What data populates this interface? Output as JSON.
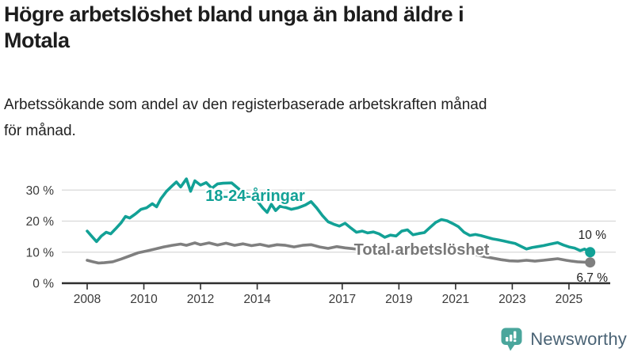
{
  "header": {
    "title": "Högre arbetslöshet bland unga än bland äldre i\nMotala",
    "subtitle": "Arbetssökande som andel av den registerbaserade arbetskraften månad\nför månad."
  },
  "chart_data": {
    "type": "line",
    "title": "Högre arbetslöshet bland unga än bland äldre i Motala",
    "subtitle": "Arbetssökande som andel av den registerbaserade arbetskraften månad för månad.",
    "grid": true,
    "legend_position": "inline-labels",
    "x_axis": {
      "range": [
        2007.6,
        2026.3
      ],
      "ticks": [
        {
          "year": 2008,
          "label": "2008"
        },
        {
          "year": 2010,
          "label": "2010"
        },
        {
          "year": 2012,
          "label": "2012"
        },
        {
          "year": 2014,
          "label": "2014"
        },
        {
          "year": 2017,
          "label": "2017"
        },
        {
          "year": 2019,
          "label": "2019"
        },
        {
          "year": 2021,
          "label": "2021"
        },
        {
          "year": 2023,
          "label": "2023"
        },
        {
          "year": 2025,
          "label": "2025"
        }
      ]
    },
    "y_axis": {
      "range": [
        0,
        34
      ],
      "unit": "%",
      "ticks": [
        {
          "value": 0,
          "label": "0 %"
        },
        {
          "value": 10,
          "label": "10 %"
        },
        {
          "value": 20,
          "label": "20 %"
        },
        {
          "value": 30,
          "label": "30 %"
        }
      ]
    },
    "series": [
      {
        "name": "18-24-åringar",
        "color": "#12a196",
        "label_color": "#12a196",
        "end_label": "10 %",
        "end_value": 10,
        "points": [
          [
            2008.0,
            16.8
          ],
          [
            2008.17,
            15.0
          ],
          [
            2008.33,
            13.4
          ],
          [
            2008.5,
            15.2
          ],
          [
            2008.67,
            16.4
          ],
          [
            2008.83,
            15.9
          ],
          [
            2009.0,
            17.5
          ],
          [
            2009.2,
            19.5
          ],
          [
            2009.35,
            21.5
          ],
          [
            2009.5,
            21.0
          ],
          [
            2009.7,
            22.3
          ],
          [
            2009.9,
            23.8
          ],
          [
            2010.1,
            24.3
          ],
          [
            2010.3,
            25.6
          ],
          [
            2010.45,
            24.6
          ],
          [
            2010.6,
            27.2
          ],
          [
            2010.8,
            29.6
          ],
          [
            2011.0,
            31.4
          ],
          [
            2011.15,
            32.6
          ],
          [
            2011.3,
            31.0
          ],
          [
            2011.5,
            33.6
          ],
          [
            2011.65,
            29.6
          ],
          [
            2011.8,
            33.0
          ],
          [
            2012.0,
            31.6
          ],
          [
            2012.2,
            32.4
          ],
          [
            2012.4,
            30.6
          ],
          [
            2012.6,
            32.0
          ],
          [
            2012.8,
            32.2
          ],
          [
            2013.1,
            32.3
          ],
          [
            2013.4,
            30.0
          ],
          [
            2013.7,
            28.4
          ],
          [
            2014.0,
            26.5
          ],
          [
            2014.2,
            24.2
          ],
          [
            2014.35,
            22.8
          ],
          [
            2014.5,
            25.4
          ],
          [
            2014.65,
            23.4
          ],
          [
            2014.8,
            24.8
          ],
          [
            2015.0,
            24.4
          ],
          [
            2015.2,
            23.8
          ],
          [
            2015.45,
            24.3
          ],
          [
            2015.7,
            25.2
          ],
          [
            2015.9,
            26.3
          ],
          [
            2016.1,
            24.2
          ],
          [
            2016.3,
            21.8
          ],
          [
            2016.5,
            19.8
          ],
          [
            2016.7,
            19.0
          ],
          [
            2016.9,
            18.4
          ],
          [
            2017.1,
            19.3
          ],
          [
            2017.3,
            17.8
          ],
          [
            2017.5,
            16.4
          ],
          [
            2017.7,
            16.8
          ],
          [
            2017.9,
            16.2
          ],
          [
            2018.1,
            16.5
          ],
          [
            2018.3,
            15.9
          ],
          [
            2018.5,
            14.8
          ],
          [
            2018.7,
            15.5
          ],
          [
            2018.9,
            15.2
          ],
          [
            2019.1,
            16.8
          ],
          [
            2019.3,
            17.2
          ],
          [
            2019.5,
            15.6
          ],
          [
            2019.7,
            16.0
          ],
          [
            2019.9,
            16.3
          ],
          [
            2020.1,
            18.0
          ],
          [
            2020.3,
            19.6
          ],
          [
            2020.5,
            20.5
          ],
          [
            2020.7,
            20.1
          ],
          [
            2020.9,
            19.2
          ],
          [
            2021.1,
            18.2
          ],
          [
            2021.3,
            16.4
          ],
          [
            2021.5,
            15.4
          ],
          [
            2021.7,
            15.7
          ],
          [
            2021.9,
            15.3
          ],
          [
            2022.1,
            14.8
          ],
          [
            2022.3,
            14.3
          ],
          [
            2022.5,
            14.0
          ],
          [
            2022.7,
            13.6
          ],
          [
            2022.9,
            13.2
          ],
          [
            2023.1,
            12.8
          ],
          [
            2023.3,
            11.9
          ],
          [
            2023.5,
            11.0
          ],
          [
            2023.7,
            11.5
          ],
          [
            2023.9,
            11.8
          ],
          [
            2024.1,
            12.1
          ],
          [
            2024.3,
            12.5
          ],
          [
            2024.6,
            13.1
          ],
          [
            2024.8,
            12.3
          ],
          [
            2025.0,
            11.7
          ],
          [
            2025.2,
            11.3
          ],
          [
            2025.4,
            10.5
          ],
          [
            2025.55,
            11.0
          ],
          [
            2025.75,
            10.0
          ]
        ]
      },
      {
        "name": "Total arbetslöshet",
        "color": "#7f7f7f",
        "label_color": "#787878",
        "end_label": "6,7 %",
        "end_value": 6.7,
        "points": [
          [
            2008.0,
            7.4
          ],
          [
            2008.2,
            6.9
          ],
          [
            2008.4,
            6.5
          ],
          [
            2008.6,
            6.6
          ],
          [
            2008.9,
            6.9
          ],
          [
            2009.2,
            7.8
          ],
          [
            2009.5,
            8.8
          ],
          [
            2009.8,
            9.8
          ],
          [
            2010.1,
            10.4
          ],
          [
            2010.4,
            11.0
          ],
          [
            2010.7,
            11.7
          ],
          [
            2011.0,
            12.2
          ],
          [
            2011.3,
            12.6
          ],
          [
            2011.5,
            12.2
          ],
          [
            2011.8,
            13.0
          ],
          [
            2012.0,
            12.4
          ],
          [
            2012.3,
            13.0
          ],
          [
            2012.6,
            12.3
          ],
          [
            2012.9,
            12.9
          ],
          [
            2013.2,
            12.2
          ],
          [
            2013.5,
            12.7
          ],
          [
            2013.8,
            12.1
          ],
          [
            2014.1,
            12.5
          ],
          [
            2014.4,
            11.9
          ],
          [
            2014.7,
            12.4
          ],
          [
            2015.0,
            12.2
          ],
          [
            2015.3,
            11.7
          ],
          [
            2015.6,
            12.2
          ],
          [
            2015.9,
            12.4
          ],
          [
            2016.2,
            11.7
          ],
          [
            2016.5,
            11.2
          ],
          [
            2016.8,
            11.8
          ],
          [
            2017.1,
            11.4
          ],
          [
            2017.4,
            11.1
          ],
          [
            2017.7,
            10.8
          ],
          [
            2018.0,
            10.6
          ],
          [
            2018.3,
            10.3
          ],
          [
            2018.6,
            10.1
          ],
          [
            2019.0,
            10.3
          ],
          [
            2019.4,
            10.0
          ],
          [
            2019.8,
            10.2
          ],
          [
            2020.2,
            11.0
          ],
          [
            2020.5,
            11.6
          ],
          [
            2020.8,
            11.3
          ],
          [
            2021.1,
            10.6
          ],
          [
            2021.4,
            9.8
          ],
          [
            2021.7,
            9.2
          ],
          [
            2022.0,
            8.6
          ],
          [
            2022.3,
            8.1
          ],
          [
            2022.6,
            7.6
          ],
          [
            2022.9,
            7.2
          ],
          [
            2023.2,
            7.1
          ],
          [
            2023.5,
            7.4
          ],
          [
            2023.8,
            7.1
          ],
          [
            2024.1,
            7.4
          ],
          [
            2024.4,
            7.7
          ],
          [
            2024.6,
            7.9
          ],
          [
            2024.9,
            7.4
          ],
          [
            2025.1,
            7.1
          ],
          [
            2025.3,
            6.9
          ],
          [
            2025.5,
            6.8
          ],
          [
            2025.75,
            6.7
          ]
        ]
      }
    ]
  },
  "branding": {
    "name": "Newsworthy",
    "icon": "bar-chart-bubble-icon",
    "icon_color": "#4aa69c",
    "text_color": "#4a6375"
  }
}
